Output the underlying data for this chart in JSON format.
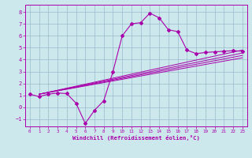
{
  "title": "",
  "xlabel": "Windchill (Refroidissement éolien,°C)",
  "ylabel": "",
  "bg_color": "#cce8ed",
  "line_color": "#aa00aa",
  "xlim": [
    -0.5,
    23.5
  ],
  "ylim": [
    -1.6,
    8.6
  ],
  "xticks": [
    0,
    1,
    2,
    3,
    4,
    5,
    6,
    7,
    8,
    9,
    10,
    11,
    12,
    13,
    14,
    15,
    16,
    17,
    18,
    19,
    20,
    21,
    22,
    23
  ],
  "yticks": [
    -1,
    0,
    1,
    2,
    3,
    4,
    5,
    6,
    7,
    8
  ],
  "main_line_x": [
    0,
    1,
    2,
    3,
    4,
    5,
    6,
    7,
    8,
    9,
    10,
    11,
    12,
    13,
    14,
    15,
    16,
    17,
    18,
    19,
    20,
    21,
    22,
    23
  ],
  "main_line_y": [
    1.1,
    0.9,
    1.1,
    1.2,
    1.15,
    0.35,
    -1.35,
    -0.25,
    0.55,
    3.0,
    6.0,
    7.0,
    7.1,
    7.9,
    7.5,
    6.5,
    6.35,
    4.8,
    4.5,
    4.6,
    4.65,
    4.7,
    4.75,
    4.7
  ],
  "fan_lines": [
    {
      "x0": 1,
      "y0": 1.1,
      "x1": 23,
      "y1": 4.8
    },
    {
      "x0": 1,
      "y0": 1.1,
      "x1": 23,
      "y1": 4.55
    },
    {
      "x0": 1,
      "y0": 1.1,
      "x1": 23,
      "y1": 4.35
    },
    {
      "x0": 1,
      "y0": 1.1,
      "x1": 23,
      "y1": 4.15
    }
  ]
}
